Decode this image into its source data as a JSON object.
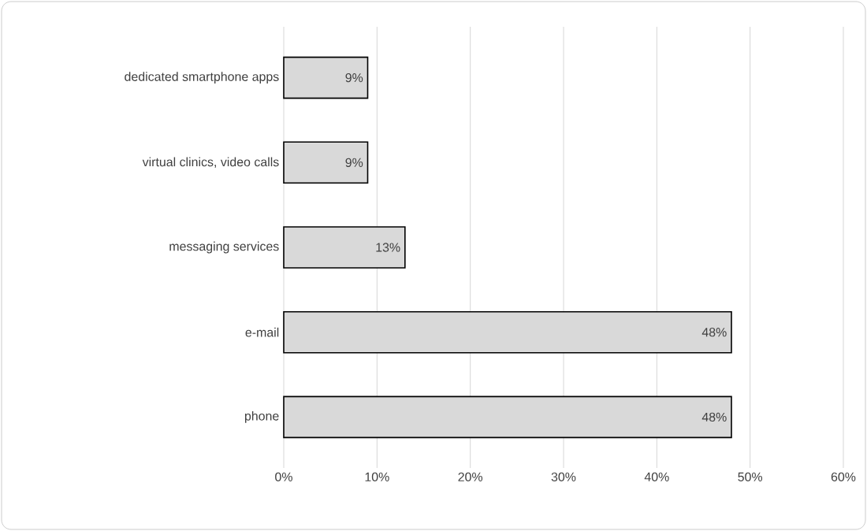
{
  "chart_data": {
    "type": "bar",
    "orientation": "horizontal",
    "categories": [
      "dedicated smartphone apps",
      "virtual clinics, video calls",
      "messaging services",
      "e-mail",
      "phone"
    ],
    "values": [
      9,
      9,
      13,
      48,
      48
    ],
    "value_labels": [
      "9%",
      "9%",
      "13%",
      "48%",
      "48%"
    ],
    "color": "#d9d9d9",
    "xlim": [
      0,
      60
    ],
    "xticks": [
      {
        "value": 0,
        "label": "0%"
      },
      {
        "value": 10,
        "label": "10%"
      },
      {
        "value": 20,
        "label": "20%"
      },
      {
        "value": 30,
        "label": "30%"
      },
      {
        "value": 40,
        "label": "40%"
      },
      {
        "value": 50,
        "label": "50%"
      },
      {
        "value": 60,
        "label": "60%"
      }
    ],
    "grid": "x"
  }
}
